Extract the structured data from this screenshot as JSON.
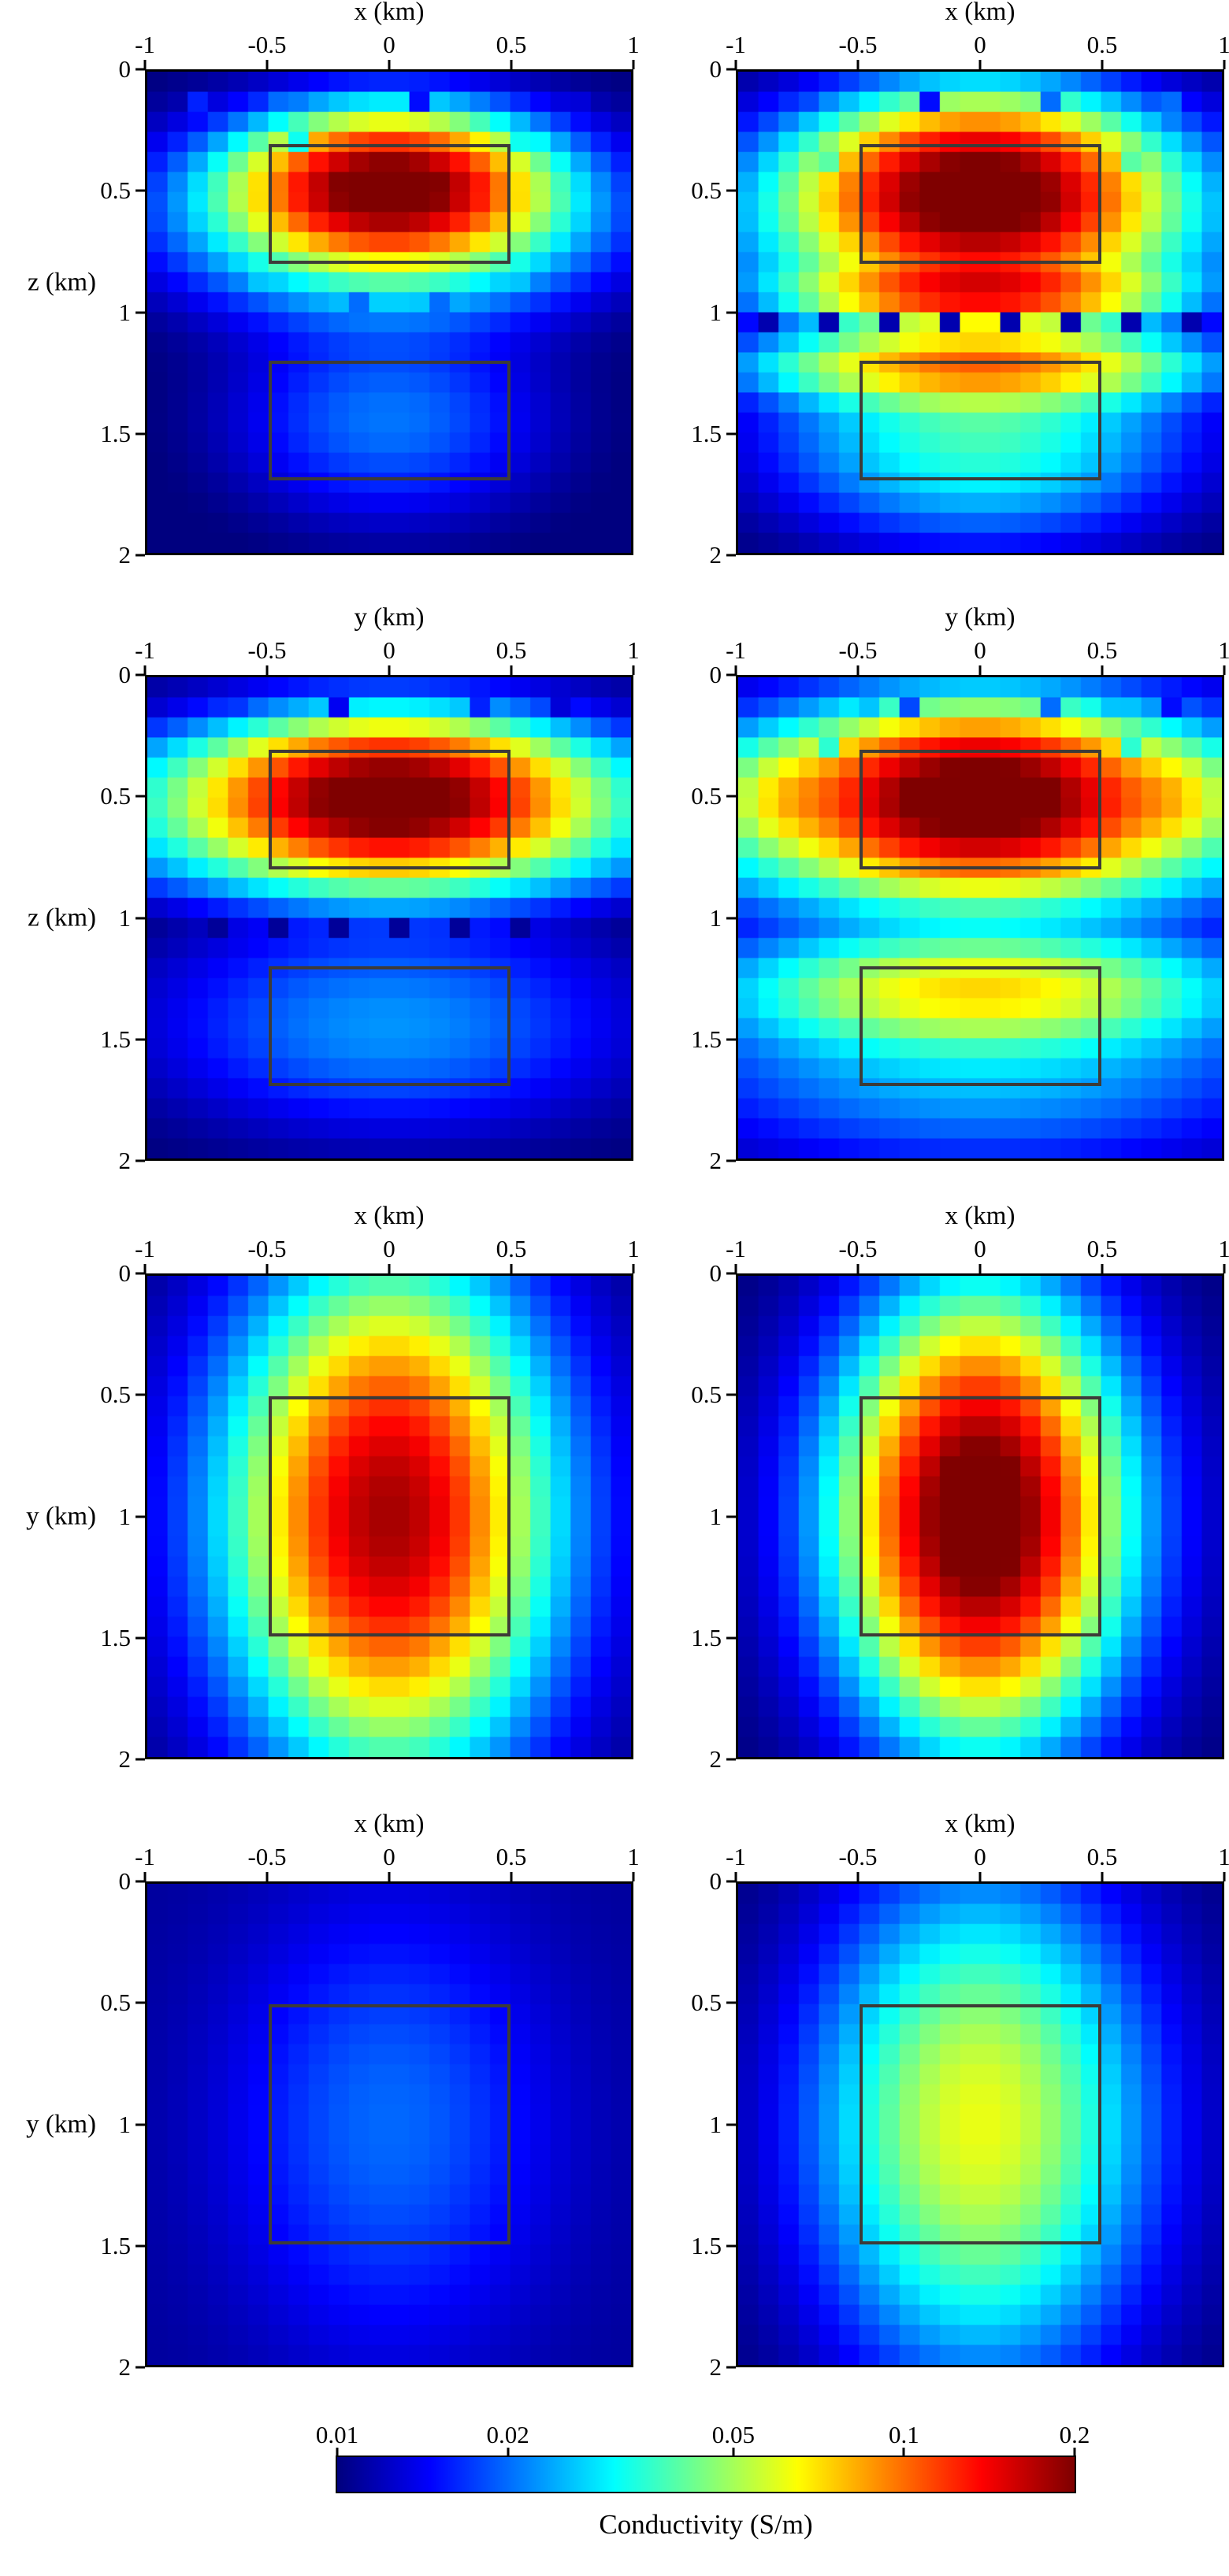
{
  "chart_data": {
    "type": "heatmap",
    "description": "Eight pixelated conductivity cross-sections (jet colormap, log color scale) with dark rectangles marking true model bodies; shared colorbar at bottom.",
    "grid": {
      "n": 24
    },
    "colorbar": {
      "min": 0.01,
      "max": 0.2,
      "scale": "log",
      "colormap": "jet",
      "ticks": [
        0.01,
        0.02,
        0.05,
        0.1,
        0.2
      ],
      "tick_labels": [
        "0.01",
        "0.02",
        "0.05",
        "0.1",
        "0.2"
      ],
      "label": "Conductivity (S/m)"
    },
    "panels": [
      {
        "id": "row1-left",
        "top_label": "x (km)",
        "left_label": "z (km)",
        "xlim": [
          -1,
          1
        ],
        "ylim": [
          0,
          2
        ],
        "top_tick_labels": [
          "-1",
          "-0.5",
          "0",
          "0.5",
          "1"
        ],
        "left_tick_labels": [
          "0",
          "0.5",
          "1",
          "1.5",
          "2"
        ],
        "background": 0.0095,
        "blobs": [
          {
            "cx": 0,
            "cy": 0.48,
            "sx": 0.3,
            "sy": 0.15,
            "amp": 0.19
          },
          {
            "cx": 0,
            "cy": 0.58,
            "sx": 0.5,
            "sy": 0.24,
            "amp": 0.05
          },
          {
            "cx": 0,
            "cy": 1.45,
            "sx": 0.4,
            "sy": 0.26,
            "amp": 0.011
          }
        ],
        "speckles": [
          {
            "x": -0.77,
            "y": 0.13,
            "v": 0.016
          },
          {
            "x": -0.46,
            "y": 0.13,
            "v": 0.02
          },
          {
            "x": 0.12,
            "y": 0.13,
            "v": 0.015
          },
          {
            "x": 0.8,
            "y": 0.13,
            "v": 0.013
          },
          {
            "x": -0.41,
            "y": 0.26,
            "v": 0.032
          },
          {
            "x": 0.5,
            "y": 0.26,
            "v": 0.032
          },
          {
            "x": -0.52,
            "y": 0.88,
            "v": 0.026
          },
          {
            "x": 0.53,
            "y": 0.88,
            "v": 0.026
          },
          {
            "x": -0.15,
            "y": 0.92,
            "v": 0.02
          },
          {
            "x": 0.22,
            "y": 0.92,
            "v": 0.02
          }
        ],
        "rects": [
          {
            "x0": -0.5,
            "x1": 0.5,
            "y0": 0.3,
            "y1": 0.8
          },
          {
            "x0": -0.5,
            "x1": 0.5,
            "y0": 1.2,
            "y1": 1.7
          }
        ]
      },
      {
        "id": "row1-right",
        "top_label": "x (km)",
        "left_label": null,
        "xlim": [
          -1,
          1
        ],
        "ylim": [
          0,
          2
        ],
        "top_tick_labels": [
          "-1",
          "-0.5",
          "0",
          "0.5",
          "1"
        ],
        "left_tick_labels": [
          "0",
          "0.5",
          "1",
          "1.5",
          "2"
        ],
        "background": 0.0095,
        "blobs": [
          {
            "cx": 0,
            "cy": 0.5,
            "sx": 0.34,
            "sy": 0.19,
            "amp": 0.19
          },
          {
            "cx": 0,
            "cy": 0.6,
            "sx": 0.55,
            "sy": 0.28,
            "amp": 0.06
          },
          {
            "cx": 0,
            "cy": 0.92,
            "sx": 0.4,
            "sy": 0.07,
            "amp": 0.1
          },
          {
            "cx": 0,
            "cy": 1.05,
            "sx": 1.2,
            "sy": 0.06,
            "amp": -0.003
          },
          {
            "cx": 0,
            "cy": 1.22,
            "sx": 0.48,
            "sy": 0.09,
            "amp": 0.075
          },
          {
            "cx": 0,
            "cy": 1.5,
            "sx": 0.5,
            "sy": 0.26,
            "amp": 0.028
          }
        ],
        "speckles": [
          {
            "x": -0.71,
            "y": 0.13,
            "v": 0.018
          },
          {
            "x": -0.45,
            "y": 0.13,
            "v": 0.03
          },
          {
            "x": -0.18,
            "y": 0.13,
            "v": 0.015
          },
          {
            "x": 0.3,
            "y": 0.13,
            "v": 0.02
          },
          {
            "x": 0.45,
            "y": 0.13,
            "v": 0.03
          },
          {
            "x": 0.78,
            "y": 0.13,
            "v": 0.02
          },
          {
            "x": -0.62,
            "y": 0.38,
            "v": 0.04
          },
          {
            "x": 0.62,
            "y": 0.38,
            "v": 0.04
          },
          {
            "x": -0.85,
            "y": 1.0,
            "v": 0.0115
          },
          {
            "x": -0.6,
            "y": 1.07,
            "v": 0.0115
          },
          {
            "x": -0.35,
            "y": 1.0,
            "v": 0.0115
          },
          {
            "x": -0.1,
            "y": 1.07,
            "v": 0.0115
          },
          {
            "x": 0.15,
            "y": 1.0,
            "v": 0.0115
          },
          {
            "x": 0.4,
            "y": 1.07,
            "v": 0.0115
          },
          {
            "x": 0.65,
            "y": 1.0,
            "v": 0.0115
          },
          {
            "x": 0.85,
            "y": 1.07,
            "v": 0.0115
          }
        ],
        "rects": [
          {
            "x0": -0.5,
            "x1": 0.5,
            "y0": 0.3,
            "y1": 0.8
          },
          {
            "x0": -0.5,
            "x1": 0.5,
            "y0": 1.2,
            "y1": 1.7
          }
        ]
      },
      {
        "id": "row2-left",
        "top_label": "y (km)",
        "left_label": "z (km)",
        "xlim": [
          -1,
          1
        ],
        "ylim": [
          0,
          2
        ],
        "top_tick_labels": [
          "-1",
          "-0.5",
          "0",
          "0.5",
          "1"
        ],
        "left_tick_labels": [
          "0",
          "0.5",
          "1",
          "1.5",
          "2"
        ],
        "background": 0.0095,
        "blobs": [
          {
            "cx": 0,
            "cy": 0.5,
            "sx": 0.38,
            "sy": 0.16,
            "amp": 0.19
          },
          {
            "cx": 0,
            "cy": 0.55,
            "sx": 0.7,
            "sy": 0.24,
            "amp": 0.05
          },
          {
            "cx": 0,
            "cy": 0.15,
            "sx": 1.2,
            "sy": 0.07,
            "amp": -0.002
          },
          {
            "cx": 0,
            "cy": 1.0,
            "sx": 1.2,
            "sy": 0.09,
            "amp": -0.0035
          },
          {
            "cx": 0,
            "cy": 1.45,
            "sx": 0.6,
            "sy": 0.27,
            "amp": 0.013
          }
        ],
        "speckles": [
          {
            "x": -0.6,
            "y": 0.15,
            "v": 0.017
          },
          {
            "x": -0.2,
            "y": 0.15,
            "v": 0.014
          },
          {
            "x": 0.35,
            "y": 0.15,
            "v": 0.016
          },
          {
            "x": 0.7,
            "y": 0.15,
            "v": 0.013
          },
          {
            "x": -0.7,
            "y": 1.0,
            "v": 0.0108
          },
          {
            "x": -0.45,
            "y": 1.03,
            "v": 0.0108
          },
          {
            "x": -0.2,
            "y": 1.0,
            "v": 0.0108
          },
          {
            "x": 0.05,
            "y": 1.03,
            "v": 0.0108
          },
          {
            "x": 0.3,
            "y": 1.0,
            "v": 0.0108
          },
          {
            "x": 0.55,
            "y": 1.03,
            "v": 0.0108
          }
        ],
        "rects": [
          {
            "x0": -0.5,
            "x1": 0.5,
            "y0": 0.3,
            "y1": 0.8
          },
          {
            "x0": -0.5,
            "x1": 0.5,
            "y0": 1.2,
            "y1": 1.7
          }
        ]
      },
      {
        "id": "row2-right",
        "top_label": "y (km)",
        "left_label": null,
        "xlim": [
          -1,
          1
        ],
        "ylim": [
          0,
          2
        ],
        "top_tick_labels": [
          "-1",
          "-0.5",
          "0",
          "0.5",
          "1"
        ],
        "left_tick_labels": [
          "0",
          "0.5",
          "1",
          "1.5",
          "2"
        ],
        "background": 0.0095,
        "blobs": [
          {
            "cx": 0,
            "cy": 0.5,
            "sx": 0.38,
            "sy": 0.18,
            "amp": 0.19
          },
          {
            "cx": 0,
            "cy": 0.55,
            "sx": 0.75,
            "sy": 0.27,
            "amp": 0.06
          },
          {
            "cx": -0.82,
            "cy": 0.5,
            "sx": 0.14,
            "sy": 0.12,
            "amp": 0.02
          },
          {
            "cx": 0.82,
            "cy": 0.5,
            "sx": 0.14,
            "sy": 0.12,
            "amp": 0.02
          },
          {
            "cx": 0,
            "cy": 0.15,
            "sx": 1.2,
            "sy": 0.07,
            "amp": -0.002
          },
          {
            "cx": 0,
            "cy": 1.02,
            "sx": 1.2,
            "sy": 0.06,
            "amp": -0.003
          },
          {
            "cx": 0,
            "cy": 1.3,
            "sx": 0.55,
            "sy": 0.13,
            "amp": 0.05
          },
          {
            "cx": 0,
            "cy": 1.55,
            "sx": 0.8,
            "sy": 0.3,
            "amp": 0.018
          }
        ],
        "speckles": [
          {
            "x": -0.5,
            "y": 0.13,
            "v": 0.026
          },
          {
            "x": -0.28,
            "y": 0.13,
            "v": 0.018
          },
          {
            "x": 0.28,
            "y": 0.13,
            "v": 0.02
          },
          {
            "x": 0.5,
            "y": 0.13,
            "v": 0.026
          },
          {
            "x": 0.8,
            "y": 0.13,
            "v": 0.015
          },
          {
            "x": -0.62,
            "y": 0.33,
            "v": 0.035
          },
          {
            "x": 0.62,
            "y": 0.33,
            "v": 0.035
          }
        ],
        "rects": [
          {
            "x0": -0.5,
            "x1": 0.5,
            "y0": 0.3,
            "y1": 0.8
          },
          {
            "x0": -0.5,
            "x1": 0.5,
            "y0": 1.2,
            "y1": 1.7
          }
        ]
      },
      {
        "id": "row3-left",
        "top_label": "x (km)",
        "left_label": "y (km)",
        "xlim": [
          -1,
          1
        ],
        "ylim": [
          0,
          2
        ],
        "top_tick_labels": [
          "-1",
          "-0.5",
          "0",
          "0.5",
          "1"
        ],
        "left_tick_labels": [
          "0",
          "0.5",
          "1",
          "1.5",
          "2"
        ],
        "background": 0.0095,
        "blobs": [
          {
            "cx": 0,
            "cy": 1.0,
            "sx": 0.28,
            "sy": 0.46,
            "amp": 0.13
          },
          {
            "cx": 0,
            "cy": 1.0,
            "sx": 0.47,
            "sy": 0.68,
            "amp": 0.04
          }
        ],
        "speckles": [],
        "rects": [
          {
            "x0": -0.5,
            "x1": 0.5,
            "y0": 0.5,
            "y1": 1.5
          }
        ]
      },
      {
        "id": "row3-right",
        "top_label": "x (km)",
        "left_label": null,
        "xlim": [
          -1,
          1
        ],
        "ylim": [
          0,
          2
        ],
        "top_tick_labels": [
          "-1",
          "-0.5",
          "0",
          "0.5",
          "1"
        ],
        "left_tick_labels": [
          "0",
          "0.5",
          "1",
          "1.5",
          "2"
        ],
        "background": 0.0095,
        "blobs": [
          {
            "cx": 0,
            "cy": 1.0,
            "sx": 0.25,
            "sy": 0.4,
            "amp": 0.2
          },
          {
            "cx": 0,
            "cy": 1.0,
            "sx": 0.42,
            "sy": 0.6,
            "amp": 0.04
          }
        ],
        "speckles": [],
        "rects": [
          {
            "x0": -0.5,
            "x1": 0.5,
            "y0": 0.5,
            "y1": 1.5
          }
        ]
      },
      {
        "id": "row4-left",
        "top_label": "x (km)",
        "left_label": "y (km)",
        "xlim": [
          -1,
          1
        ],
        "ylim": [
          0,
          2
        ],
        "top_tick_labels": [
          "-1",
          "-0.5",
          "0",
          "0.5",
          "1"
        ],
        "left_tick_labels": [
          "0",
          "0.5",
          "1",
          "1.5",
          "2"
        ],
        "background": 0.0108,
        "blobs": [
          {
            "cx": 0,
            "cy": 1.0,
            "sx": 0.42,
            "sy": 0.6,
            "amp": 0.009
          }
        ],
        "speckles": [],
        "rects": [
          {
            "x0": -0.5,
            "x1": 0.5,
            "y0": 0.5,
            "y1": 1.5
          }
        ]
      },
      {
        "id": "row4-right",
        "top_label": "x (km)",
        "left_label": null,
        "xlim": [
          -1,
          1
        ],
        "ylim": [
          0,
          2
        ],
        "top_tick_labels": [
          "-1",
          "-0.5",
          "0",
          "0.5",
          "1"
        ],
        "left_tick_labels": [
          "0",
          "0.5",
          "1",
          "1.5",
          "2"
        ],
        "background": 0.0095,
        "blobs": [
          {
            "cx": 0,
            "cy": 1.0,
            "sx": 0.34,
            "sy": 0.52,
            "amp": 0.04
          },
          {
            "cx": 0,
            "cy": 1.0,
            "sx": 0.52,
            "sy": 0.74,
            "amp": 0.012
          }
        ],
        "speckles": [],
        "rects": [
          {
            "x0": -0.5,
            "x1": 0.5,
            "y0": 0.5,
            "y1": 1.5
          }
        ]
      }
    ]
  }
}
